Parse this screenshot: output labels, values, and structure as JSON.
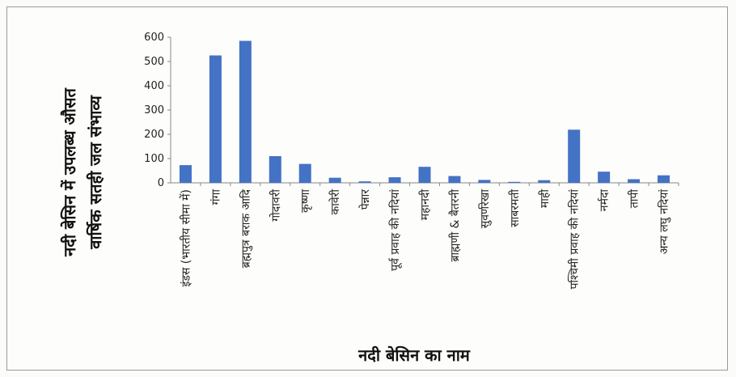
{
  "chart_data": {
    "type": "bar",
    "title": "",
    "xlabel": "नदी बेसिन का नाम",
    "ylabel_lines": [
      "नदी बेसिन में उपलब्ध औसत",
      "वार्षिक सतही जल संभाव्य"
    ],
    "ylim": [
      0,
      600
    ],
    "yticks": [
      0,
      100,
      200,
      300,
      400,
      500,
      600
    ],
    "bar_color": "#4472c4",
    "grid": false,
    "categories": [
      "इंडस (भारतीय सीमा में)",
      "गंगा",
      "ब्रह्मपुत्र बराक आदि",
      "गोदावरी",
      "कृष्णा",
      "कावेरी",
      "पेन्नार",
      "पूर्व प्रवाह की नदियां",
      "महानदी",
      "ब्राह्मणी & बैतरनी",
      "सुवर्णरेखा",
      "साबरमती",
      "माही",
      "पश्चिमी प्रवाह की नदियां",
      "नर्मदा",
      "तापी",
      "अन्य लघु नदियां"
    ],
    "values": [
      73,
      525,
      585,
      110,
      78,
      21,
      6,
      23,
      66,
      28,
      12,
      4,
      11,
      219,
      46,
      15,
      31
    ]
  }
}
